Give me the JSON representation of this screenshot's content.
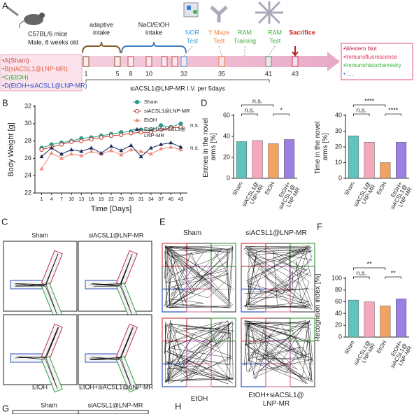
{
  "timeline": {
    "panel": "A",
    "mouse": [
      "C57BL/6  mice",
      "Male, 8 weeks old"
    ],
    "phases": [
      [
        "adaptive",
        "intake"
      ],
      [
        "NaCl/EtOH",
        "intake"
      ]
    ],
    "tests": [
      [
        "NOR",
        "Test"
      ],
      [
        "Y Maze",
        "Test"
      ],
      [
        "RAM",
        "Training"
      ],
      [
        "RAM",
        "Test"
      ],
      [
        "Sacrifice"
      ]
    ],
    "days": [
      "1",
      "5",
      "8",
      "10",
      "32",
      "35",
      "41",
      "43"
    ],
    "groups": [
      "•A(Sham)",
      "•B(siACSL1@LNP-MR)",
      "•C(EtOH)",
      "•D(EtOH+siACSL1@LNP-MR)"
    ],
    "assays": [
      "•Western blot",
      "•Immunofluorescence",
      "•Immunohistochemistry",
      "•......"
    ],
    "treatment": "siACSL1@LNP-MR I.V. per 5days"
  },
  "chart_data": [
    {
      "type": "line",
      "panel": "B",
      "xlabel": "Time [Days]",
      "ylabel": "Body Weight [g]",
      "x": [
        1,
        4,
        7,
        10,
        13,
        16,
        19,
        22,
        25,
        28,
        31,
        34,
        37,
        40,
        43
      ],
      "xlim": [
        -1,
        45
      ],
      "xticks": [
        1,
        4,
        7,
        10,
        13,
        16,
        19,
        22,
        25,
        28,
        31,
        34,
        37,
        40,
        43
      ],
      "ylim": [
        22,
        32
      ],
      "yticks": [
        22,
        24,
        26,
        28,
        30,
        32
      ],
      "legend": "upper right",
      "series": [
        {
          "name": "Sham",
          "color": "#2a9a8a",
          "marker": "circle",
          "values": [
            27.2,
            27.6,
            27.8,
            28.0,
            28.3,
            28.4,
            28.6,
            28.8,
            29.0,
            29.1,
            29.3,
            29.2,
            29.8,
            29.6,
            30.0
          ]
        },
        {
          "name": "siACSL1@LNP-MR",
          "color": "#c0392b",
          "marker": "open-circle",
          "values": [
            27.0,
            27.3,
            27.6,
            27.9,
            28.0,
            28.2,
            28.4,
            28.6,
            28.7,
            28.9,
            29.0,
            29.0,
            29.3,
            29.5,
            29.6
          ]
        },
        {
          "name": "EtOH",
          "color": "#f08a78",
          "marker": "triangle",
          "values": [
            24.8,
            26.6,
            26.0,
            26.5,
            26.3,
            26.8,
            26.5,
            26.9,
            26.4,
            27.0,
            26.8,
            26.5,
            27.1,
            27.3,
            27.0
          ]
        },
        {
          "name": "EtOH+siACSL1@LNP-MR",
          "color": "#1f2a5a",
          "marker": "triangle",
          "values": [
            26.2,
            27.2,
            26.5,
            27.0,
            26.8,
            27.2,
            26.6,
            27.4,
            26.9,
            27.5,
            26.2,
            27.2,
            27.6,
            27.8,
            27.3
          ]
        }
      ],
      "annotations": [
        "n.s.",
        "n.s."
      ]
    },
    {
      "type": "bar",
      "panel": "D",
      "ylabel": "Entries in the novel arms [%]",
      "categories": [
        "Sham",
        "siACSL1@LNP-MR",
        "EtOH",
        "EtOH+siACSL1@LNP-MR"
      ],
      "values": [
        35,
        36,
        33,
        37
      ],
      "colors": [
        "#5fc4c0",
        "#f5a8bc",
        "#f2a263",
        "#9c7fe3"
      ],
      "ylim": [
        0,
        60
      ],
      "yticks": [
        0,
        20,
        40,
        60
      ],
      "annotations": [
        "n.s.",
        "n.s.",
        "*"
      ]
    },
    {
      "type": "bar",
      "ylabel": "Time in the novel arms [%]",
      "categories": [
        "Sham",
        "siACSL1@LNP-MR",
        "EtOH",
        "EtOH+siACSL1@LNP-MR"
      ],
      "values": [
        27,
        23,
        10,
        23
      ],
      "colors": [
        "#5fc4c0",
        "#f5a8bc",
        "#f2a263",
        "#9c7fe3"
      ],
      "ylim": [
        0,
        40
      ],
      "yticks": [
        0,
        10,
        20,
        30,
        40
      ],
      "annotations": [
        "****",
        "n.s.",
        "****"
      ]
    },
    {
      "type": "bar",
      "panel": "F",
      "ylabel": "Recognition index [%]",
      "categories": [
        "Sham",
        "siACSL1@LNP-MR",
        "EtOH",
        "EtOH+siACSL1@LNP-MR"
      ],
      "values": [
        63,
        60,
        53,
        65
      ],
      "colors": [
        "#5fc4c0",
        "#f5a8bc",
        "#f2a263",
        "#9c7fe3"
      ],
      "ylim": [
        0,
        100
      ],
      "yticks": [
        0,
        20,
        40,
        60,
        80,
        100
      ],
      "annotations": [
        "**",
        "n.s.",
        "**"
      ]
    }
  ],
  "ymaze": {
    "panel": "C",
    "titles": [
      "Sham",
      "siACSL1@LNP-MR",
      "EtOH",
      "EtOH+siACSL1@LNP-MR"
    ]
  },
  "openfield": {
    "panel": "E",
    "titles": [
      "Sham",
      "siACSL1@LNP-MR",
      "EtOH",
      "EtOH+siACSL1@LNP-MR"
    ]
  },
  "next": {
    "panels": [
      "G",
      "H"
    ],
    "titles": [
      "Sham",
      "siACSL1@LNP-MR"
    ]
  }
}
